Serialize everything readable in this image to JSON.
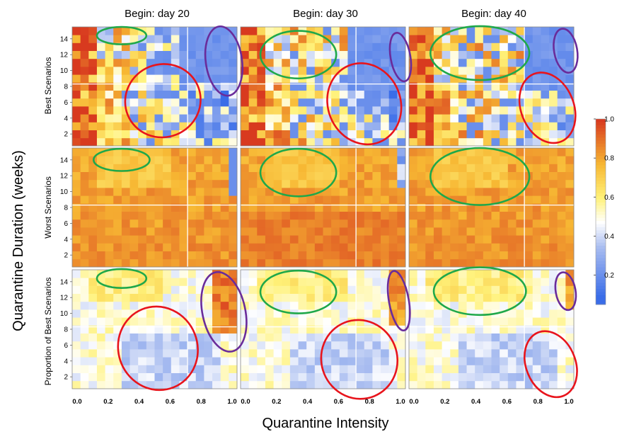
{
  "chart_data": {
    "type": "heatmap",
    "title": "",
    "xlabel": "Quarantine Intensity",
    "ylabel": "Quarantine Duration (weeks)",
    "columns": [
      "Begin: day 20",
      "Begin: day 30",
      "Begin: day 40"
    ],
    "rows": [
      "Best Scenarios",
      "Worst Scenarios",
      "Proportion of Best Scenarios"
    ],
    "x_ticks": [
      "0.0",
      "0.2",
      "0.4",
      "0.6",
      "0.8",
      "1.0"
    ],
    "y_ticks": [
      "2",
      "4",
      "6",
      "8",
      "10",
      "12",
      "14"
    ],
    "xlim": [
      0,
      1
    ],
    "ylim": [
      0.5,
      15.5
    ],
    "grid_size": [
      20,
      15
    ],
    "colorbar": {
      "ticks": [
        "0.2",
        "0.4",
        "0.6",
        "0.8",
        "1.0"
      ],
      "range": [
        0.05,
        1.0
      ],
      "colors": [
        "#3a6de8",
        "#a9bdf0",
        "#ffffff",
        "#fff27a",
        "#f7b733",
        "#d83a1f"
      ]
    },
    "guide_lines": {
      "x": 0.7,
      "y": 8.3
    },
    "annotation_colors": {
      "green": "#1fa84a",
      "red": "#e8141c",
      "purple": "#6a2c9a"
    },
    "annotations": [
      {
        "color": "green",
        "panel": [
          0,
          0
        ],
        "cx": 0.3,
        "cy": 14.4,
        "rx": 0.15,
        "ry": 1.1
      },
      {
        "color": "red",
        "panel": [
          0,
          0
        ],
        "cx": 0.55,
        "cy": 6.2,
        "rx": 0.23,
        "ry": 4.6,
        "rot": -22
      },
      {
        "color": "purple",
        "panel": [
          0,
          0
        ],
        "cx": 0.92,
        "cy": 11.2,
        "rx": 0.11,
        "ry": 4.4,
        "rot": -8
      },
      {
        "color": "green",
        "panel": [
          0,
          1
        ],
        "cx": 0.35,
        "cy": 12.0,
        "rx": 0.23,
        "ry": 3.0
      },
      {
        "color": "red",
        "panel": [
          0,
          1
        ],
        "cx": 0.75,
        "cy": 5.8,
        "rx": 0.22,
        "ry": 5.2,
        "rot": -22
      },
      {
        "color": "purple",
        "panel": [
          0,
          1
        ],
        "cx": 0.97,
        "cy": 11.7,
        "rx": 0.06,
        "ry": 3.1,
        "rot": -10
      },
      {
        "color": "green",
        "panel": [
          0,
          2
        ],
        "cx": 0.43,
        "cy": 12.2,
        "rx": 0.3,
        "ry": 3.4
      },
      {
        "color": "red",
        "panel": [
          0,
          2
        ],
        "cx": 0.84,
        "cy": 5.3,
        "rx": 0.16,
        "ry": 4.6,
        "rot": -22
      },
      {
        "color": "purple",
        "panel": [
          0,
          2
        ],
        "cx": 0.95,
        "cy": 12.5,
        "rx": 0.07,
        "ry": 2.8,
        "rot": -10
      },
      {
        "color": "green",
        "panel": [
          1,
          0
        ],
        "cx": 0.3,
        "cy": 14.0,
        "rx": 0.17,
        "ry": 1.4
      },
      {
        "color": "green",
        "panel": [
          1,
          1
        ],
        "cx": 0.35,
        "cy": 12.4,
        "rx": 0.23,
        "ry": 3.0
      },
      {
        "color": "green",
        "panel": [
          1,
          2
        ],
        "cx": 0.43,
        "cy": 11.9,
        "rx": 0.3,
        "ry": 3.6
      },
      {
        "color": "green",
        "panel": [
          2,
          0
        ],
        "cx": 0.3,
        "cy": 14.4,
        "rx": 0.15,
        "ry": 1.2
      },
      {
        "color": "red",
        "panel": [
          2,
          0
        ],
        "cx": 0.52,
        "cy": 5.6,
        "rx": 0.24,
        "ry": 5.3,
        "rot": -22
      },
      {
        "color": "purple",
        "panel": [
          2,
          0
        ],
        "cx": 0.92,
        "cy": 10.2,
        "rx": 0.13,
        "ry": 5.1,
        "rot": -12
      },
      {
        "color": "green",
        "panel": [
          2,
          1
        ],
        "cx": 0.35,
        "cy": 12.7,
        "rx": 0.23,
        "ry": 2.7
      },
      {
        "color": "red",
        "panel": [
          2,
          1
        ],
        "cx": 0.72,
        "cy": 4.2,
        "rx": 0.23,
        "ry": 5.0,
        "rot": -22
      },
      {
        "color": "purple",
        "panel": [
          2,
          1
        ],
        "cx": 0.96,
        "cy": 11.6,
        "rx": 0.06,
        "ry": 3.8,
        "rot": -10
      },
      {
        "color": "green",
        "panel": [
          2,
          2
        ],
        "cx": 0.43,
        "cy": 12.8,
        "rx": 0.28,
        "ry": 3.0
      },
      {
        "color": "red",
        "panel": [
          2,
          2
        ],
        "cx": 0.86,
        "cy": 3.6,
        "rx": 0.15,
        "ry": 4.3,
        "rot": -22
      },
      {
        "color": "purple",
        "panel": [
          2,
          2
        ],
        "cx": 0.95,
        "cy": 12.8,
        "rx": 0.06,
        "ry": 2.4,
        "rot": -10
      }
    ]
  }
}
